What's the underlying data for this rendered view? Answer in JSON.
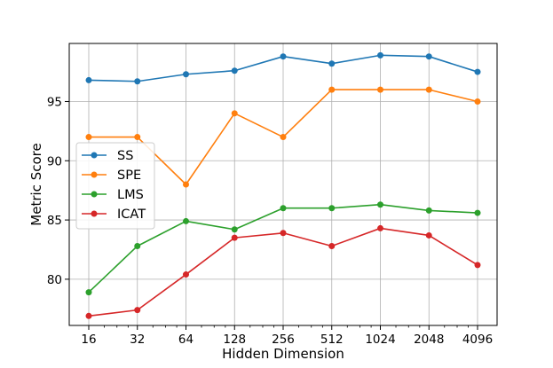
{
  "chart_data": {
    "type": "line",
    "title": "",
    "xlabel": "Hidden Dimension",
    "ylabel": "Metric Score",
    "x_scale": "log2",
    "categories": [
      "16",
      "32",
      "64",
      "128",
      "256",
      "512",
      "1024",
      "2048",
      "4096"
    ],
    "yticks": [
      80,
      85,
      90,
      95
    ],
    "ylim": [
      76.1,
      99.9
    ],
    "grid": true,
    "legend_position": "center-left",
    "series": [
      {
        "name": "SS",
        "color": "#1f77b4",
        "values": [
          96.8,
          96.7,
          97.3,
          97.6,
          98.8,
          98.2,
          98.9,
          98.8,
          97.5
        ]
      },
      {
        "name": "SPE",
        "color": "#ff7f0e",
        "values": [
          92.0,
          92.0,
          88.0,
          94.0,
          92.0,
          96.0,
          96.0,
          96.0,
          95.0
        ]
      },
      {
        "name": "LMS",
        "color": "#2ca02c",
        "values": [
          78.9,
          82.8,
          84.9,
          84.2,
          86.0,
          86.0,
          86.3,
          85.8,
          85.6
        ]
      },
      {
        "name": "ICAT",
        "color": "#d62728",
        "values": [
          76.9,
          77.4,
          80.4,
          83.5,
          83.9,
          82.8,
          84.3,
          83.7,
          81.2
        ]
      }
    ]
  }
}
